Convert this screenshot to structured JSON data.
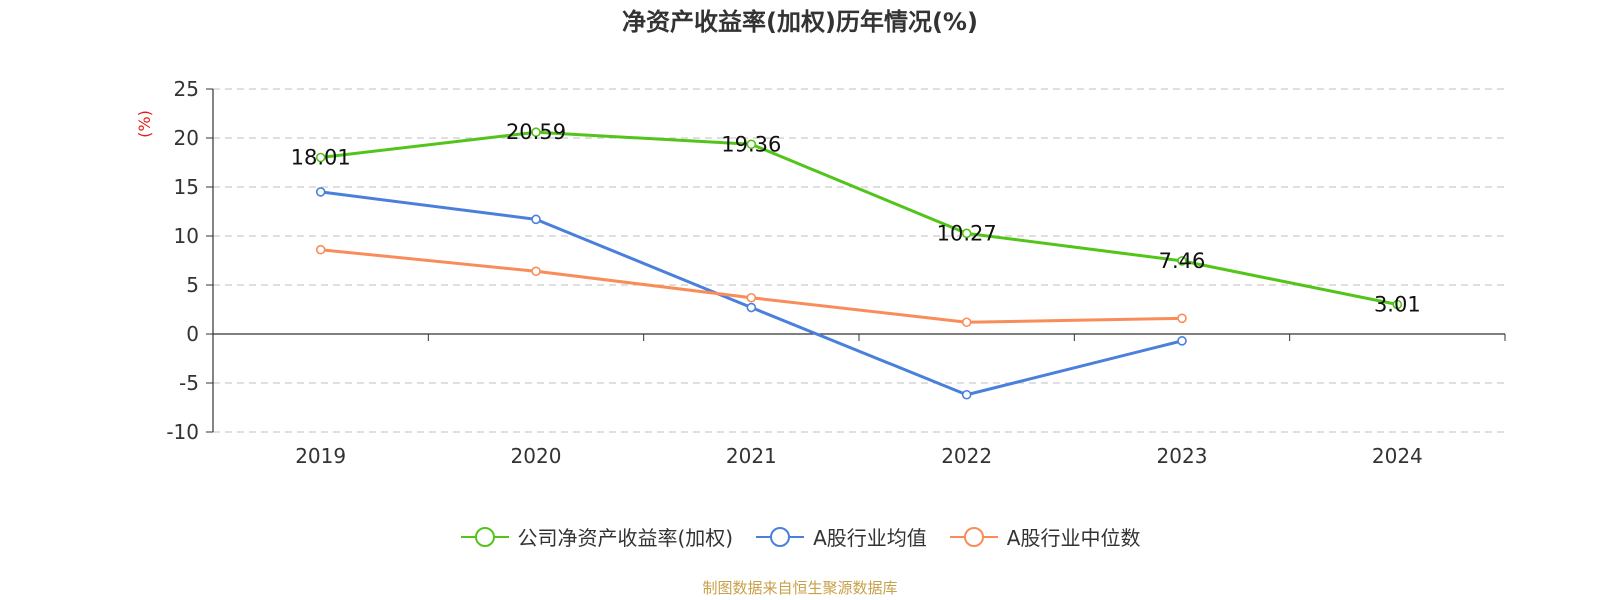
{
  "title": "净资产收益率(加权)历年情况(%)",
  "source": "制图数据来自恒生聚源数据库",
  "chart_data": {
    "type": "line",
    "title": "净资产收益率(加权)历年情况(%)",
    "ylabel": "(%)",
    "xlabel": "",
    "categories": [
      "2019",
      "2020",
      "2021",
      "2022",
      "2023",
      "2024"
    ],
    "ylim": [
      -10,
      25
    ],
    "yticks": [
      25,
      20,
      15,
      10,
      5,
      0,
      -5,
      -10
    ],
    "grid": true,
    "legend_position": "bottom",
    "series": [
      {
        "name": "公司净资产收益率(加权)",
        "color": "#52c41a",
        "values": [
          18.01,
          20.59,
          19.36,
          10.27,
          7.46,
          3.01
        ],
        "show_labels": true
      },
      {
        "name": "A股行业均值",
        "color": "#4a80db",
        "values": [
          14.5,
          11.7,
          2.7,
          -6.2,
          -0.7,
          null
        ],
        "show_labels": false
      },
      {
        "name": "A股行业中位数",
        "color": "#f98d5a",
        "values": [
          8.6,
          6.4,
          3.7,
          1.2,
          1.6,
          null
        ],
        "show_labels": false
      }
    ]
  }
}
